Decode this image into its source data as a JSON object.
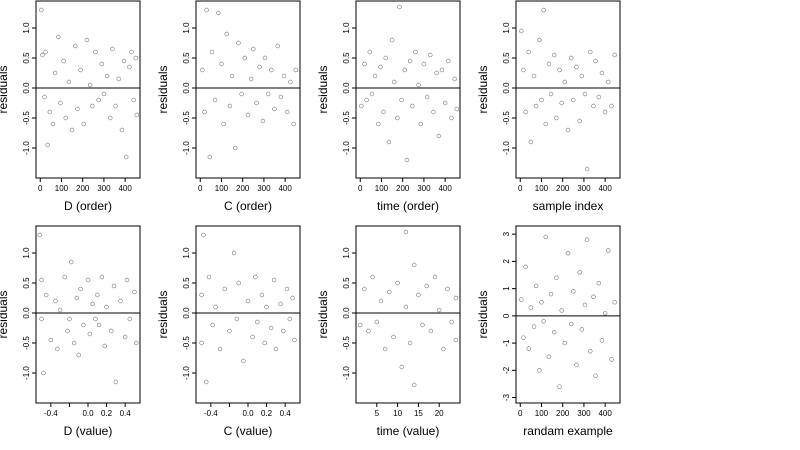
{
  "chart_data": [
    {
      "type": "scatter",
      "xlabel": "D (order)",
      "ylabel": "residuals",
      "xlim": [
        -20,
        470
      ],
      "ylim": [
        -1.5,
        1.45
      ],
      "xticks": [
        0,
        100,
        200,
        300,
        400
      ],
      "xtick_labels": [
        "0",
        "100",
        "200",
        "300",
        "400"
      ],
      "yticks": [
        -1.0,
        -0.5,
        0.0,
        0.5,
        1.0
      ],
      "ytick_labels": [
        "-1.0",
        "-0.5",
        "0.0",
        "0.5",
        "1.0"
      ],
      "hline": 0,
      "points": [
        [
          5,
          1.3
        ],
        [
          10,
          0.55
        ],
        [
          20,
          -0.15
        ],
        [
          25,
          0.6
        ],
        [
          35,
          -0.95
        ],
        [
          45,
          -0.4
        ],
        [
          60,
          -0.6
        ],
        [
          70,
          0.25
        ],
        [
          85,
          0.85
        ],
        [
          95,
          -0.25
        ],
        [
          110,
          0.45
        ],
        [
          120,
          -0.5
        ],
        [
          135,
          0.1
        ],
        [
          150,
          -0.7
        ],
        [
          165,
          0.7
        ],
        [
          175,
          -0.35
        ],
        [
          190,
          0.3
        ],
        [
          205,
          -0.6
        ],
        [
          220,
          0.8
        ],
        [
          235,
          0.05
        ],
        [
          245,
          -0.3
        ],
        [
          260,
          0.6
        ],
        [
          275,
          -0.2
        ],
        [
          290,
          0.4
        ],
        [
          300,
          -0.1
        ],
        [
          315,
          0.2
        ],
        [
          330,
          -0.5
        ],
        [
          340,
          0.65
        ],
        [
          355,
          -0.3
        ],
        [
          370,
          0.15
        ],
        [
          385,
          -0.7
        ],
        [
          395,
          0.45
        ],
        [
          405,
          -1.15
        ],
        [
          420,
          0.35
        ],
        [
          430,
          0.6
        ],
        [
          440,
          -0.2
        ],
        [
          450,
          0.5
        ],
        [
          455,
          -0.45
        ]
      ]
    },
    {
      "type": "scatter",
      "xlabel": "C (order)",
      "ylabel": "residuals",
      "xlim": [
        -20,
        470
      ],
      "ylim": [
        -1.5,
        1.45
      ],
      "xticks": [
        0,
        100,
        200,
        300,
        400
      ],
      "xtick_labels": [
        "0",
        "100",
        "200",
        "300",
        "400"
      ],
      "yticks": [
        -1.0,
        -0.5,
        0.0,
        0.5,
        1.0
      ],
      "ytick_labels": [
        "-1.0",
        "-0.5",
        "0.0",
        "0.5",
        "1.0"
      ],
      "hline": 0,
      "points": [
        [
          10,
          0.3
        ],
        [
          20,
          -0.4
        ],
        [
          30,
          1.3
        ],
        [
          45,
          -1.15
        ],
        [
          55,
          0.6
        ],
        [
          70,
          -0.2
        ],
        [
          85,
          1.25
        ],
        [
          100,
          0.4
        ],
        [
          110,
          -0.6
        ],
        [
          125,
          0.9
        ],
        [
          140,
          -0.3
        ],
        [
          150,
          0.2
        ],
        [
          165,
          -1.0
        ],
        [
          180,
          0.75
        ],
        [
          195,
          -0.1
        ],
        [
          210,
          0.5
        ],
        [
          225,
          -0.45
        ],
        [
          240,
          0.15
        ],
        [
          250,
          0.65
        ],
        [
          265,
          -0.25
        ],
        [
          280,
          0.35
        ],
        [
          295,
          -0.55
        ],
        [
          305,
          0.5
        ],
        [
          320,
          -0.1
        ],
        [
          335,
          0.3
        ],
        [
          350,
          -0.35
        ],
        [
          365,
          0.7
        ],
        [
          380,
          -0.15
        ],
        [
          395,
          0.2
        ],
        [
          410,
          -0.4
        ],
        [
          425,
          0.1
        ],
        [
          440,
          -0.6
        ],
        [
          450,
          0.3
        ]
      ]
    },
    {
      "type": "scatter",
      "xlabel": "time (order)",
      "ylabel": "residuals",
      "xlim": [
        -20,
        470
      ],
      "ylim": [
        -1.5,
        1.45
      ],
      "xticks": [
        0,
        100,
        200,
        300,
        400
      ],
      "xtick_labels": [
        "0",
        "100",
        "200",
        "300",
        "400"
      ],
      "yticks": [
        -1.0,
        -0.5,
        0.0,
        0.5,
        1.0
      ],
      "ytick_labels": [
        "-1.0",
        "-0.5",
        "0.0",
        "0.5",
        "1.0"
      ],
      "hline": 0,
      "points": [
        [
          5,
          -0.3
        ],
        [
          20,
          0.4
        ],
        [
          30,
          -0.2
        ],
        [
          45,
          0.6
        ],
        [
          55,
          -0.1
        ],
        [
          70,
          0.2
        ],
        [
          85,
          -0.6
        ],
        [
          95,
          0.35
        ],
        [
          110,
          -0.4
        ],
        [
          120,
          0.5
        ],
        [
          135,
          -0.9
        ],
        [
          150,
          0.8
        ],
        [
          160,
          0.1
        ],
        [
          175,
          -0.5
        ],
        [
          185,
          1.35
        ],
        [
          195,
          -0.2
        ],
        [
          210,
          0.3
        ],
        [
          220,
          -1.2
        ],
        [
          235,
          0.45
        ],
        [
          245,
          -0.3
        ],
        [
          260,
          0.6
        ],
        [
          275,
          0.05
        ],
        [
          285,
          -0.6
        ],
        [
          300,
          0.4
        ],
        [
          315,
          -0.15
        ],
        [
          330,
          0.55
        ],
        [
          345,
          -0.4
        ],
        [
          360,
          0.25
        ],
        [
          370,
          -0.8
        ],
        [
          385,
          0.3
        ],
        [
          400,
          -0.25
        ],
        [
          415,
          0.45
        ],
        [
          430,
          -0.5
        ],
        [
          445,
          0.15
        ],
        [
          455,
          -0.35
        ]
      ]
    },
    {
      "type": "scatter",
      "xlabel": "sample index",
      "ylabel": "residuals",
      "xlim": [
        -20,
        470
      ],
      "ylim": [
        -1.5,
        1.45
      ],
      "xticks": [
        0,
        100,
        200,
        300,
        400
      ],
      "xtick_labels": [
        "0",
        "100",
        "200",
        "300",
        "400"
      ],
      "yticks": [
        -1.0,
        -0.5,
        0.0,
        0.5,
        1.0
      ],
      "ytick_labels": [
        "-1.0",
        "-0.5",
        "0.0",
        "0.5",
        "1.0"
      ],
      "hline": 0,
      "points": [
        [
          5,
          0.95
        ],
        [
          15,
          0.3
        ],
        [
          25,
          -0.4
        ],
        [
          40,
          0.6
        ],
        [
          50,
          -0.9
        ],
        [
          65,
          0.2
        ],
        [
          75,
          -0.3
        ],
        [
          90,
          0.8
        ],
        [
          100,
          -0.2
        ],
        [
          110,
          1.3
        ],
        [
          120,
          -0.6
        ],
        [
          135,
          0.4
        ],
        [
          145,
          -0.1
        ],
        [
          160,
          0.55
        ],
        [
          170,
          -0.5
        ],
        [
          185,
          0.3
        ],
        [
          195,
          -0.25
        ],
        [
          210,
          0.1
        ],
        [
          225,
          -0.7
        ],
        [
          240,
          0.5
        ],
        [
          250,
          -0.2
        ],
        [
          265,
          0.35
        ],
        [
          280,
          -0.55
        ],
        [
          290,
          0.2
        ],
        [
          305,
          -0.1
        ],
        [
          315,
          -1.35
        ],
        [
          330,
          0.6
        ],
        [
          345,
          -0.3
        ],
        [
          355,
          0.45
        ],
        [
          370,
          -0.15
        ],
        [
          385,
          0.25
        ],
        [
          400,
          -0.4
        ],
        [
          415,
          0.1
        ],
        [
          430,
          -0.3
        ],
        [
          445,
          0.55
        ]
      ]
    },
    {
      "type": "scatter",
      "xlabel": "D (value)",
      "ylabel": "residuals",
      "xlim": [
        -0.56,
        0.56
      ],
      "ylim": [
        -1.5,
        1.45
      ],
      "xticks": [
        -0.4,
        -0.2,
        0.0,
        0.2,
        0.4
      ],
      "xtick_labels": [
        "-0.4",
        "",
        "0.0",
        "0.2",
        "0.4"
      ],
      "yticks": [
        -1.0,
        -0.5,
        0.0,
        0.5,
        1.0
      ],
      "ytick_labels": [
        "-1.0",
        "-0.5",
        "0.0",
        "0.5",
        "1.0"
      ],
      "hline": 0,
      "points": [
        [
          -0.52,
          1.3
        ],
        [
          -0.5,
          0.55
        ],
        [
          -0.5,
          -0.1
        ],
        [
          -0.48,
          -1.0
        ],
        [
          -0.45,
          0.3
        ],
        [
          -0.4,
          -0.45
        ],
        [
          -0.35,
          0.2
        ],
        [
          -0.33,
          -0.6
        ],
        [
          -0.3,
          0.05
        ],
        [
          -0.25,
          0.6
        ],
        [
          -0.22,
          -0.3
        ],
        [
          -0.2,
          -0.1
        ],
        [
          -0.18,
          0.85
        ],
        [
          -0.15,
          -0.5
        ],
        [
          -0.12,
          0.25
        ],
        [
          -0.1,
          -0.7
        ],
        [
          -0.08,
          0.4
        ],
        [
          -0.05,
          -0.2
        ],
        [
          0.0,
          0.55
        ],
        [
          0.02,
          -0.35
        ],
        [
          0.05,
          0.15
        ],
        [
          0.08,
          -0.1
        ],
        [
          0.1,
          0.3
        ],
        [
          0.12,
          -0.2
        ],
        [
          0.15,
          0.6
        ],
        [
          0.18,
          -0.55
        ],
        [
          0.2,
          0.1
        ],
        [
          0.25,
          -0.3
        ],
        [
          0.28,
          0.45
        ],
        [
          0.3,
          -1.15
        ],
        [
          0.35,
          0.2
        ],
        [
          0.4,
          -0.4
        ],
        [
          0.42,
          0.55
        ],
        [
          0.45,
          -0.1
        ],
        [
          0.5,
          0.35
        ],
        [
          0.52,
          -0.5
        ]
      ]
    },
    {
      "type": "scatter",
      "xlabel": "C (value)",
      "ylabel": "residuals",
      "xlim": [
        -0.56,
        0.56
      ],
      "ylim": [
        -1.5,
        1.45
      ],
      "xticks": [
        -0.4,
        -0.2,
        0.0,
        0.2,
        0.4
      ],
      "xtick_labels": [
        "-0.4",
        "",
        "0.0",
        "0.2",
        "0.4"
      ],
      "yticks": [
        -1.0,
        -0.5,
        0.0,
        0.5,
        1.0
      ],
      "ytick_labels": [
        "-1.0",
        "-0.5",
        "0.0",
        "0.5",
        "1.0"
      ],
      "hline": 0,
      "points": [
        [
          -0.5,
          0.3
        ],
        [
          -0.5,
          -0.5
        ],
        [
          -0.48,
          1.3
        ],
        [
          -0.45,
          -1.15
        ],
        [
          -0.42,
          0.6
        ],
        [
          -0.38,
          -0.2
        ],
        [
          -0.35,
          0.1
        ],
        [
          -0.3,
          -0.6
        ],
        [
          -0.25,
          0.4
        ],
        [
          -0.2,
          -0.3
        ],
        [
          -0.15,
          1.0
        ],
        [
          -0.12,
          -0.1
        ],
        [
          -0.1,
          0.5
        ],
        [
          -0.05,
          -0.8
        ],
        [
          0.0,
          0.2
        ],
        [
          0.05,
          -0.4
        ],
        [
          0.08,
          0.6
        ],
        [
          0.1,
          -0.15
        ],
        [
          0.15,
          0.3
        ],
        [
          0.18,
          -0.5
        ],
        [
          0.2,
          0.1
        ],
        [
          0.25,
          -0.25
        ],
        [
          0.28,
          0.55
        ],
        [
          0.3,
          -0.6
        ],
        [
          0.35,
          0.15
        ],
        [
          0.38,
          -0.3
        ],
        [
          0.42,
          0.4
        ],
        [
          0.45,
          -0.1
        ],
        [
          0.48,
          0.25
        ],
        [
          0.5,
          -0.45
        ]
      ]
    },
    {
      "type": "scatter",
      "xlabel": "time (value)",
      "ylabel": "residuals",
      "xlim": [
        0,
        25
      ],
      "ylim": [
        -1.5,
        1.45
      ],
      "xticks": [
        5,
        10,
        15,
        20
      ],
      "xtick_labels": [
        "5",
        "10",
        "15",
        "20"
      ],
      "yticks": [
        -1.0,
        -0.5,
        0.0,
        0.5,
        1.0
      ],
      "ytick_labels": [
        "-1.0",
        "-0.5",
        "0.0",
        "0.5",
        "1.0"
      ],
      "hline": 0,
      "points": [
        [
          1,
          -0.2
        ],
        [
          2,
          0.4
        ],
        [
          3,
          -0.3
        ],
        [
          4,
          0.6
        ],
        [
          5,
          -0.15
        ],
        [
          6,
          0.2
        ],
        [
          7,
          -0.6
        ],
        [
          8,
          0.35
        ],
        [
          9,
          -0.4
        ],
        [
          10,
          0.5
        ],
        [
          11,
          -0.9
        ],
        [
          12,
          1.35
        ],
        [
          12,
          0.1
        ],
        [
          13,
          -0.5
        ],
        [
          14,
          0.8
        ],
        [
          14,
          -1.2
        ],
        [
          15,
          0.3
        ],
        [
          16,
          -0.2
        ],
        [
          17,
          0.45
        ],
        [
          18,
          -0.3
        ],
        [
          19,
          0.6
        ],
        [
          20,
          0.05
        ],
        [
          21,
          -0.6
        ],
        [
          22,
          0.4
        ],
        [
          23,
          -0.15
        ],
        [
          24,
          0.25
        ],
        [
          24,
          -0.45
        ]
      ]
    },
    {
      "type": "scatter",
      "xlabel": "randam example",
      "ylabel": "residuals",
      "xlim": [
        -20,
        470
      ],
      "ylim": [
        -3.2,
        3.3
      ],
      "xticks": [
        0,
        100,
        200,
        300,
        400
      ],
      "xtick_labels": [
        "0",
        "100",
        "200",
        "300",
        "400"
      ],
      "yticks": [
        -3,
        -2,
        -1,
        0,
        1,
        2,
        3
      ],
      "ytick_labels": [
        "-3",
        "-2",
        "-1",
        "0",
        "1",
        "2",
        "3"
      ],
      "hline": 0,
      "points": [
        [
          5,
          0.6
        ],
        [
          15,
          -0.8
        ],
        [
          25,
          1.8
        ],
        [
          40,
          -1.2
        ],
        [
          50,
          0.3
        ],
        [
          65,
          -0.4
        ],
        [
          75,
          1.1
        ],
        [
          90,
          -2.0
        ],
        [
          100,
          0.5
        ],
        [
          110,
          -0.2
        ],
        [
          120,
          2.9
        ],
        [
          135,
          -1.5
        ],
        [
          145,
          0.8
        ],
        [
          160,
          -0.6
        ],
        [
          170,
          1.4
        ],
        [
          185,
          -2.6
        ],
        [
          195,
          0.2
        ],
        [
          210,
          -1.0
        ],
        [
          225,
          2.3
        ],
        [
          240,
          -0.3
        ],
        [
          250,
          0.9
        ],
        [
          265,
          -1.8
        ],
        [
          280,
          1.6
        ],
        [
          290,
          -0.5
        ],
        [
          305,
          0.4
        ],
        [
          315,
          2.8
        ],
        [
          330,
          -1.3
        ],
        [
          345,
          0.7
        ],
        [
          355,
          -2.2
        ],
        [
          370,
          1.2
        ],
        [
          385,
          -0.9
        ],
        [
          400,
          0.1
        ],
        [
          415,
          2.4
        ],
        [
          430,
          -1.6
        ],
        [
          445,
          0.5
        ]
      ]
    }
  ]
}
